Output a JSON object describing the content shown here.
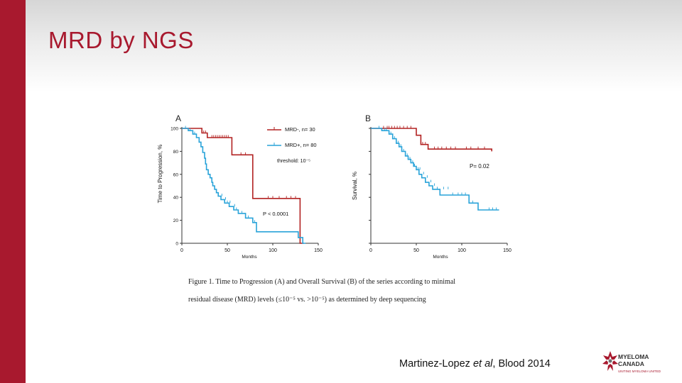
{
  "slide": {
    "title": "MRD by NGS",
    "citation_authors": "Martinez-Lopez",
    "citation_etal": "et al",
    "citation_journal": ", Blood 2014"
  },
  "caption": {
    "line1": "Figure 1. Time to Progression (A) and Overall Survival (B) of the series according to minimal",
    "line2": "residual disease (MRD) levels (≤10⁻⁵ vs. >10⁻⁵) as determined by deep sequencing"
  },
  "logo": {
    "line1": "MYELOMA",
    "line2": "CANADA",
    "tagline": "UNITING MYELOMA UNITED"
  },
  "chart_data": [
    {
      "type": "line",
      "panel_label": "A",
      "ylabel": "Time to Progression, %",
      "xlabel": "Months",
      "xlim": [
        0,
        150
      ],
      "ylim": [
        0,
        100
      ],
      "xticks": [
        0,
        50,
        100,
        150
      ],
      "yticks": [
        0,
        20,
        40,
        60,
        80,
        100
      ],
      "legend_position": "top-right",
      "annotations": [
        "threshold: 10⁻⁵",
        "P < 0.0001"
      ],
      "series": [
        {
          "name": "MRD-, n= 30",
          "color": "#b22222",
          "steps": [
            [
              0,
              100
            ],
            [
              22,
              100
            ],
            [
              22,
              96
            ],
            [
              28,
              96
            ],
            [
              28,
              92
            ],
            [
              55,
              92
            ],
            [
              55,
              77
            ],
            [
              78,
              77
            ],
            [
              78,
              39
            ],
            [
              130,
              39
            ],
            [
              130,
              0
            ],
            [
              134,
              0
            ]
          ],
          "censors": [
            [
              24,
              96
            ],
            [
              26,
              96
            ],
            [
              33,
              92
            ],
            [
              35,
              92
            ],
            [
              37,
              92
            ],
            [
              39,
              92
            ],
            [
              41,
              92
            ],
            [
              43,
              92
            ],
            [
              45,
              92
            ],
            [
              47,
              92
            ],
            [
              49,
              92
            ],
            [
              51,
              92
            ],
            [
              65,
              77
            ],
            [
              70,
              77
            ],
            [
              95,
              39
            ],
            [
              100,
              39
            ],
            [
              107,
              39
            ],
            [
              115,
              39
            ],
            [
              120,
              39
            ],
            [
              125,
              39
            ]
          ]
        },
        {
          "name": "MRD+, n= 80",
          "color": "#29a3d9",
          "steps": [
            [
              0,
              100
            ],
            [
              7,
              100
            ],
            [
              7,
              98
            ],
            [
              12,
              98
            ],
            [
              12,
              95
            ],
            [
              16,
              95
            ],
            [
              16,
              92
            ],
            [
              19,
              92
            ],
            [
              19,
              88
            ],
            [
              21,
              88
            ],
            [
              21,
              84
            ],
            [
              23,
              84
            ],
            [
              23,
              79
            ],
            [
              25,
              79
            ],
            [
              25,
              74
            ],
            [
              26,
              74
            ],
            [
              26,
              69
            ],
            [
              27,
              69
            ],
            [
              27,
              64
            ],
            [
              29,
              64
            ],
            [
              29,
              60
            ],
            [
              31,
              60
            ],
            [
              31,
              57
            ],
            [
              33,
              57
            ],
            [
              33,
              53
            ],
            [
              34,
              53
            ],
            [
              34,
              50
            ],
            [
              36,
              50
            ],
            [
              36,
              47
            ],
            [
              38,
              47
            ],
            [
              38,
              44
            ],
            [
              40,
              44
            ],
            [
              40,
              41
            ],
            [
              43,
              41
            ],
            [
              43,
              38
            ],
            [
              47,
              38
            ],
            [
              47,
              35
            ],
            [
              52,
              35
            ],
            [
              52,
              32
            ],
            [
              57,
              32
            ],
            [
              57,
              29
            ],
            [
              62,
              29
            ],
            [
              62,
              26
            ],
            [
              70,
              26
            ],
            [
              70,
              22
            ],
            [
              78,
              22
            ],
            [
              78,
              18
            ],
            [
              82,
              18
            ],
            [
              82,
              10
            ],
            [
              128,
              10
            ],
            [
              128,
              5
            ],
            [
              133,
              5
            ],
            [
              133,
              0
            ],
            [
              136,
              0
            ]
          ],
          "censors": [
            [
              4,
              100
            ],
            [
              9,
              98
            ],
            [
              14,
              95
            ],
            [
              44,
              41
            ],
            [
              48,
              38
            ],
            [
              50,
              35
            ],
            [
              53,
              35
            ],
            [
              58,
              32
            ],
            [
              60,
              29
            ],
            [
              66,
              26
            ],
            [
              73,
              22
            ],
            [
              80,
              18
            ]
          ]
        }
      ]
    },
    {
      "type": "line",
      "panel_label": "B",
      "ylabel": "Survival, %",
      "xlabel": "Months",
      "xlim": [
        0,
        150
      ],
      "ylim": [
        0,
        100
      ],
      "xticks": [
        0,
        50,
        100,
        150
      ],
      "annotations": [
        "P= 0.02"
      ],
      "series": [
        {
          "name": "MRD-",
          "color": "#b22222",
          "steps": [
            [
              0,
              100
            ],
            [
              50,
              100
            ],
            [
              50,
              94
            ],
            [
              55,
              94
            ],
            [
              55,
              86
            ],
            [
              63,
              86
            ],
            [
              63,
              82
            ],
            [
              133,
              82
            ],
            [
              133,
              80
            ]
          ],
          "censors": [
            [
              14,
              100
            ],
            [
              18,
              100
            ],
            [
              20,
              100
            ],
            [
              23,
              100
            ],
            [
              26,
              100
            ],
            [
              29,
              100
            ],
            [
              32,
              100
            ],
            [
              36,
              100
            ],
            [
              40,
              100
            ],
            [
              44,
              100
            ],
            [
              57,
              86
            ],
            [
              60,
              86
            ],
            [
              70,
              82
            ],
            [
              74,
              82
            ],
            [
              78,
              82
            ],
            [
              83,
              82
            ],
            [
              88,
              82
            ],
            [
              93,
              82
            ],
            [
              105,
              82
            ],
            [
              110,
              82
            ],
            [
              118,
              82
            ],
            [
              125,
              82
            ]
          ]
        },
        {
          "name": "MRD+",
          "color": "#29a3d9",
          "steps": [
            [
              0,
              100
            ],
            [
              12,
              100
            ],
            [
              12,
              98
            ],
            [
              20,
              98
            ],
            [
              20,
              95
            ],
            [
              24,
              95
            ],
            [
              24,
              91
            ],
            [
              28,
              91
            ],
            [
              28,
              87
            ],
            [
              31,
              87
            ],
            [
              31,
              84
            ],
            [
              34,
              84
            ],
            [
              34,
              80
            ],
            [
              38,
              80
            ],
            [
              38,
              76
            ],
            [
              41,
              76
            ],
            [
              41,
              73
            ],
            [
              44,
              73
            ],
            [
              44,
              70
            ],
            [
              47,
              70
            ],
            [
              47,
              67
            ],
            [
              50,
              67
            ],
            [
              50,
              64
            ],
            [
              53,
              64
            ],
            [
              53,
              60
            ],
            [
              56,
              60
            ],
            [
              56,
              57
            ],
            [
              60,
              57
            ],
            [
              60,
              53
            ],
            [
              64,
              53
            ],
            [
              64,
              50
            ],
            [
              68,
              50
            ],
            [
              68,
              47
            ],
            [
              76,
              47
            ],
            [
              76,
              42
            ],
            [
              108,
              42
            ],
            [
              108,
              35
            ],
            [
              118,
              35
            ],
            [
              118,
              29
            ],
            [
              141,
              29
            ],
            [
              141,
              29
            ]
          ],
          "censors": [
            [
              9,
              100
            ],
            [
              15,
              98
            ],
            [
              17,
              98
            ],
            [
              22,
              95
            ],
            [
              26,
              91
            ],
            [
              30,
              87
            ],
            [
              33,
              84
            ],
            [
              36,
              80
            ],
            [
              40,
              76
            ],
            [
              43,
              73
            ],
            [
              46,
              70
            ],
            [
              48,
              67
            ],
            [
              52,
              64
            ],
            [
              54,
              64
            ],
            [
              58,
              60
            ],
            [
              62,
              57
            ],
            [
              66,
              53
            ],
            [
              70,
              50
            ],
            [
              73,
              47
            ],
            [
              80,
              47
            ],
            [
              85,
              47
            ],
            [
              90,
              42
            ],
            [
              96,
              42
            ],
            [
              100,
              42
            ],
            [
              104,
              42
            ],
            [
              112,
              35
            ],
            [
              130,
              29
            ],
            [
              134,
              29
            ],
            [
              138,
              29
            ]
          ]
        }
      ]
    }
  ]
}
